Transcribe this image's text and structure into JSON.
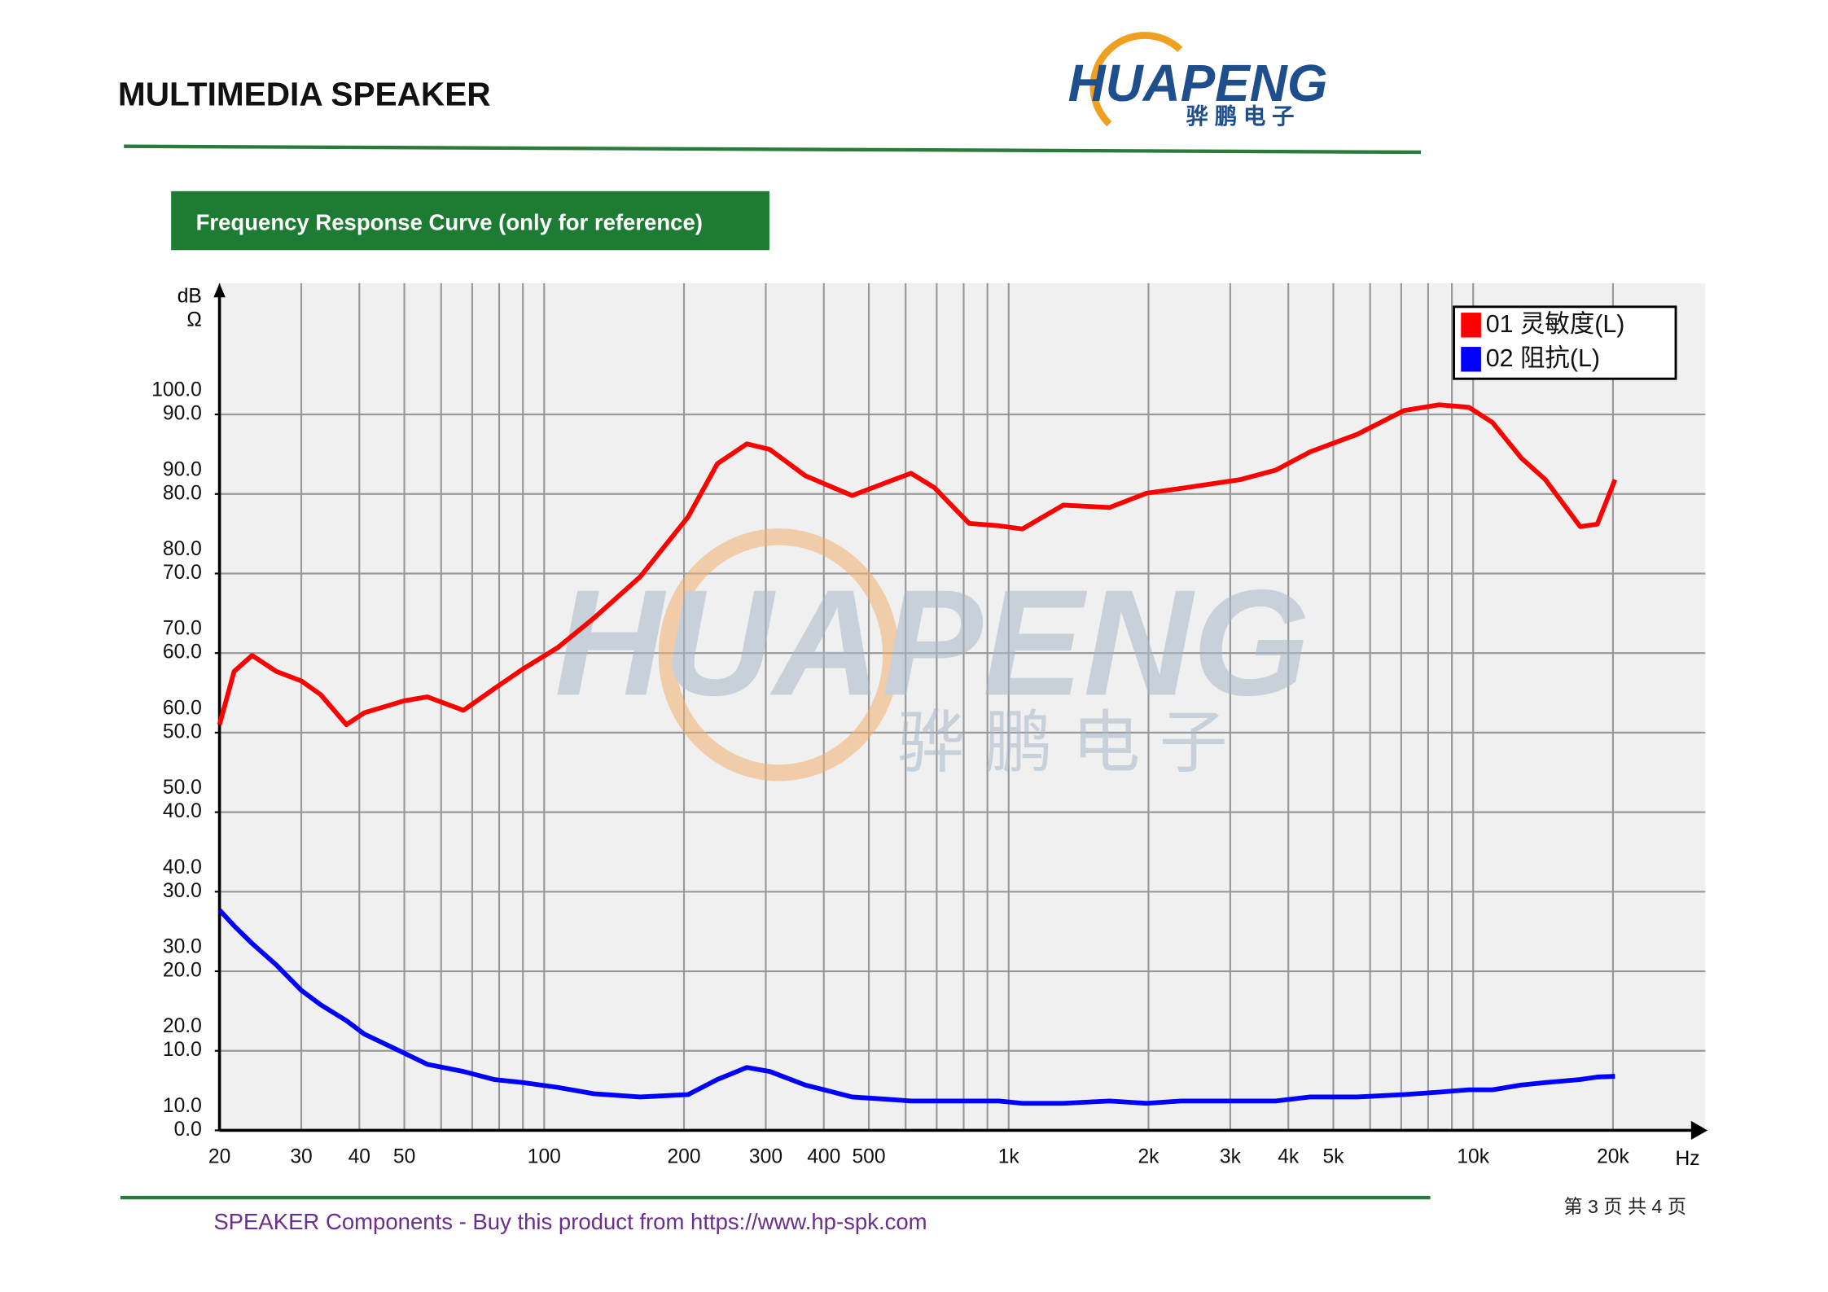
{
  "header": {
    "title": "MULTIMEDIA SPEAKER",
    "logo_text": "HUAPENG",
    "logo_subtext": "骅 鹏 电 子"
  },
  "section_title": "Frequency Response Curve (only for reference)",
  "chart_data": {
    "type": "line",
    "x_scale": "log",
    "grid": true,
    "legend": "upper right",
    "xlabel": "Hz",
    "ylabel": "dB",
    "y2label": "Ω",
    "xlim": [
      20,
      31600
    ],
    "ylim": [
      10,
      116.5
    ],
    "y2lim": [
      0,
      106.5
    ],
    "xticks": [
      20,
      30,
      40,
      50,
      100,
      200,
      300,
      400,
      500,
      {
        "value": 1000,
        "label": "1k"
      },
      {
        "value": 2000,
        "label": "2k"
      },
      {
        "value": 3000,
        "label": "3k"
      },
      {
        "value": 4000,
        "label": "4k"
      },
      {
        "value": 5000,
        "label": "5k"
      },
      {
        "value": 10000,
        "label": "10k"
      },
      {
        "value": 20000,
        "label": "20k"
      }
    ],
    "minor_xticks": [
      60,
      70,
      80,
      90,
      600,
      700,
      800,
      900,
      6000,
      7000,
      8000,
      9000
    ],
    "yticks": [
      {
        "value": 100,
        "label": "100.0"
      },
      {
        "value": 90,
        "label": "90.0"
      },
      {
        "value": 80,
        "label": "80.0"
      },
      {
        "value": 70,
        "label": "70.0"
      },
      {
        "value": 60,
        "label": "60.0"
      },
      {
        "value": 50,
        "label": "50.0"
      },
      {
        "value": 40,
        "label": "40.0"
      },
      {
        "value": 30,
        "label": "30.0"
      },
      {
        "value": 20,
        "label": "20.0"
      },
      {
        "value": 10,
        "label": "10.0"
      }
    ],
    "y2ticks": [
      {
        "value": 90,
        "label": "90.0"
      },
      {
        "value": 80,
        "label": "80.0"
      },
      {
        "value": 70,
        "label": "70.0"
      },
      {
        "value": 60,
        "label": "60.0"
      },
      {
        "value": 50,
        "label": "50.0"
      },
      {
        "value": 40,
        "label": "40.0"
      },
      {
        "value": 30,
        "label": "30.0"
      },
      {
        "value": 20,
        "label": "20.0"
      },
      {
        "value": 10,
        "label": "10.0"
      },
      {
        "value": 0,
        "label": "0.0"
      }
    ],
    "x": [
      20,
      21.5,
      23.5,
      26.5,
      30,
      33,
      37.5,
      41,
      50,
      56,
      67,
      78,
      90,
      107,
      128,
      161,
      204,
      236,
      273,
      306,
      365,
      460,
      549,
      616,
      692,
      822,
      952,
      1070,
      1310,
      1650,
      1980,
      2350,
      3150,
      3760,
      4460,
      5630,
      7100,
      8450,
      9790,
      11000,
      12700,
      14300,
      17000,
      18500,
      20200
    ],
    "series": [
      {
        "name": "01 灵敏度(L)",
        "color": "#ff0000",
        "axis": "y",
        "values": [
          61.0,
          67.7,
          69.7,
          67.7,
          66.5,
          64.8,
          61.0,
          62.5,
          64.0,
          64.5,
          62.8,
          65.5,
          68.0,
          70.7,
          74.4,
          79.6,
          87.1,
          93.8,
          96.3,
          95.6,
          92.3,
          89.8,
          91.5,
          92.6,
          90.8,
          86.3,
          86.0,
          85.6,
          88.6,
          88.3,
          90.1,
          90.7,
          91.8,
          93.0,
          95.3,
          97.5,
          100.5,
          101.2,
          100.9,
          99.0,
          94.5,
          91.8,
          85.9,
          86.2,
          91.8
        ]
      },
      {
        "name": "02 阻抗(L)",
        "color": "#0000ff",
        "axis": "y2",
        "values": [
          27.7,
          25.7,
          23.5,
          20.8,
          17.6,
          15.8,
          13.8,
          12.1,
          9.7,
          8.3,
          7.4,
          6.4,
          6.0,
          5.4,
          4.6,
          4.2,
          4.5,
          6.4,
          7.9,
          7.4,
          5.7,
          4.2,
          3.9,
          3.7,
          3.7,
          3.7,
          3.7,
          3.4,
          3.4,
          3.7,
          3.4,
          3.7,
          3.7,
          3.7,
          4.2,
          4.2,
          4.5,
          4.8,
          5.1,
          5.1,
          5.7,
          6.0,
          6.4,
          6.7,
          6.8
        ]
      }
    ]
  },
  "footer": {
    "text": "SPEAKER Components - Buy this product from  https://www.hp-spk.com",
    "page": "第 3 页 共 4 页"
  }
}
